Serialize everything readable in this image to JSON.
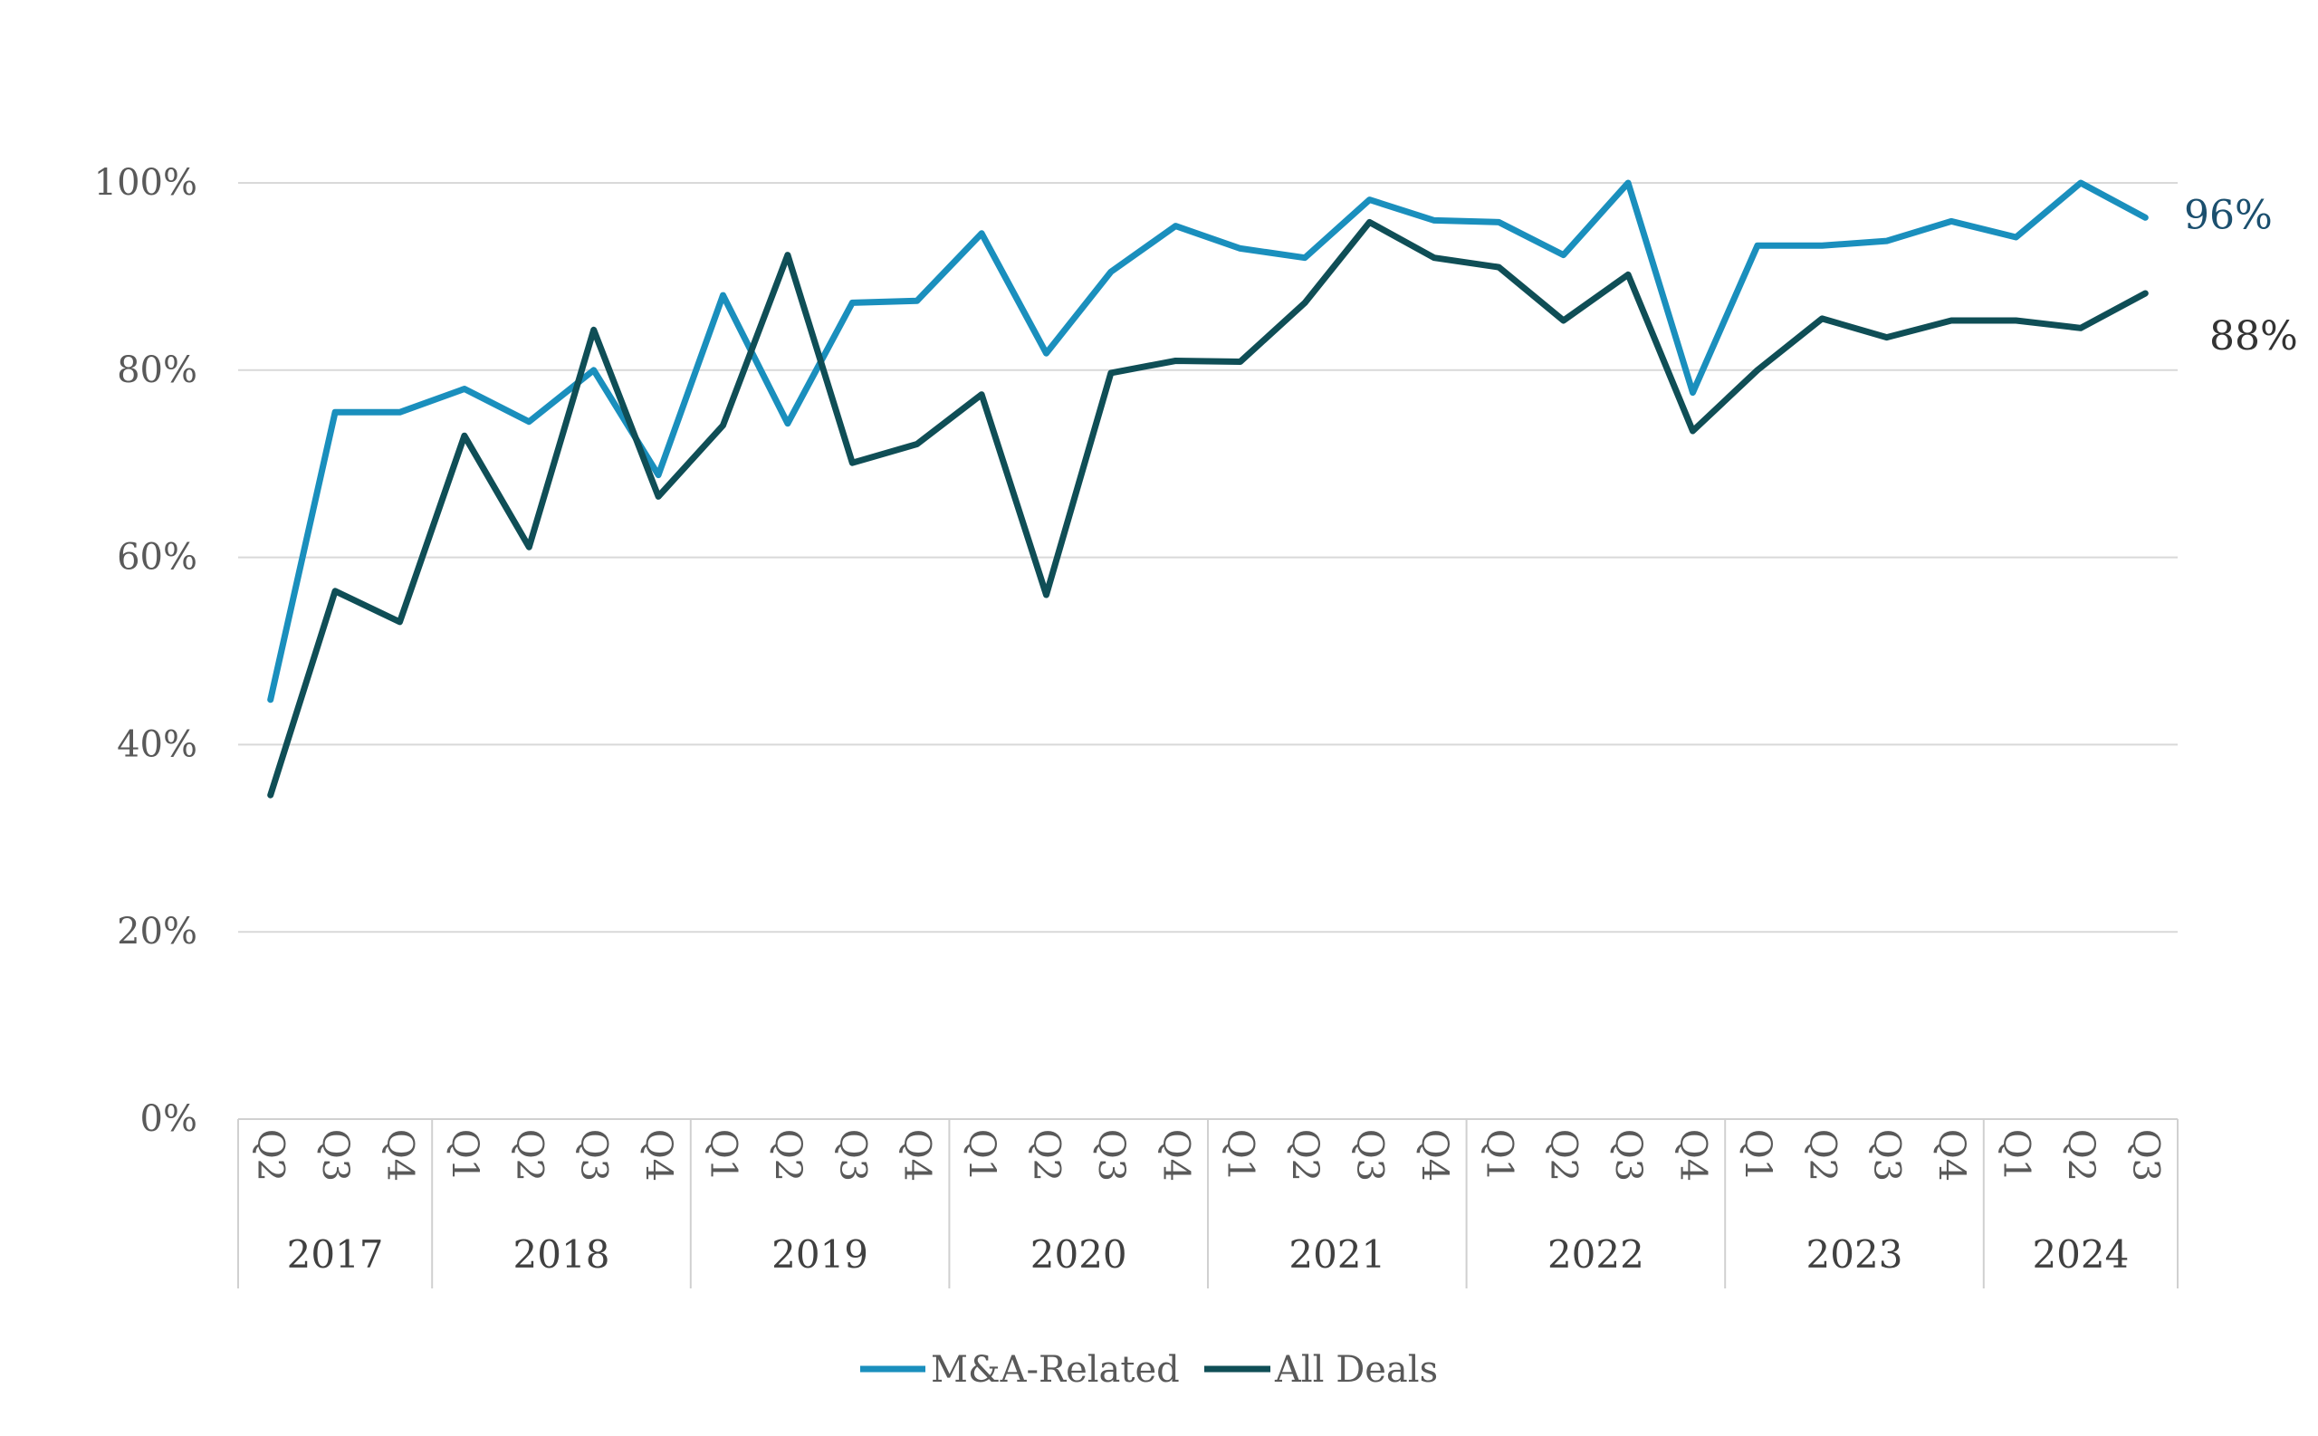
{
  "chart_data": {
    "type": "line",
    "title": "",
    "xlabel": "",
    "ylabel": "",
    "ylim": [
      0,
      100
    ],
    "y_ticks": [
      "0%",
      "20%",
      "40%",
      "60%",
      "80%",
      "100%"
    ],
    "y_tick_values": [
      0,
      20,
      40,
      60,
      80,
      100
    ],
    "grid": "horizontal",
    "legend_position": "bottom",
    "x": [
      "Q2 2017",
      "Q3 2017",
      "Q4 2017",
      "Q1 2018",
      "Q2 2018",
      "Q3 2018",
      "Q4 2018",
      "Q1 2019",
      "Q2 2019",
      "Q3 2019",
      "Q4 2019",
      "Q1 2020",
      "Q2 2020",
      "Q3 2020",
      "Q4 2020",
      "Q1 2021",
      "Q2 2021",
      "Q3 2021",
      "Q4 2021",
      "Q1 2022",
      "Q2 2022",
      "Q3 2022",
      "Q4 2022",
      "Q1 2023",
      "Q2 2023",
      "Q3 2023",
      "Q4 2023",
      "Q1 2024",
      "Q2 2024",
      "Q3 2024"
    ],
    "quarter_labels": [
      "Q2",
      "Q3",
      "Q4",
      "Q1",
      "Q2",
      "Q3",
      "Q4",
      "Q1",
      "Q2",
      "Q3",
      "Q4",
      "Q1",
      "Q2",
      "Q3",
      "Q4",
      "Q1",
      "Q2",
      "Q3",
      "Q4",
      "Q1",
      "Q2",
      "Q3",
      "Q4",
      "Q1",
      "Q2",
      "Q3",
      "Q4",
      "Q1",
      "Q2",
      "Q3"
    ],
    "year_groups": [
      {
        "label": "2017",
        "count": 3
      },
      {
        "label": "2018",
        "count": 4
      },
      {
        "label": "2019",
        "count": 4
      },
      {
        "label": "2020",
        "count": 4
      },
      {
        "label": "2021",
        "count": 4
      },
      {
        "label": "2022",
        "count": 4
      },
      {
        "label": "2023",
        "count": 4
      },
      {
        "label": "2024",
        "count": 3
      }
    ],
    "series": [
      {
        "name": "M&A-Related",
        "color": "#1a8fbd",
        "end_label": "96%",
        "end_label_color": "#1b4f6e",
        "values": [
          44.8,
          75.5,
          75.5,
          78.0,
          74.5,
          80.0,
          68.8,
          88.0,
          74.3,
          87.2,
          87.4,
          94.6,
          81.8,
          90.5,
          95.4,
          93.0,
          92.0,
          98.2,
          96.0,
          95.8,
          92.3,
          100.0,
          77.6,
          93.3,
          93.3,
          93.8,
          95.9,
          94.2,
          100.0,
          96.3
        ]
      },
      {
        "name": "All Deals",
        "color": "#0f4e56",
        "end_label": "88%",
        "end_label_color": "#333333",
        "values": [
          34.6,
          56.4,
          53.1,
          73.0,
          61.1,
          84.3,
          66.5,
          74.1,
          92.3,
          70.1,
          72.1,
          77.4,
          56.0,
          79.7,
          81.0,
          80.9,
          87.2,
          95.8,
          92.0,
          91.0,
          85.3,
          90.2,
          73.5,
          80.0,
          85.5,
          83.5,
          85.3,
          85.3,
          84.5,
          88.2
        ]
      }
    ]
  }
}
